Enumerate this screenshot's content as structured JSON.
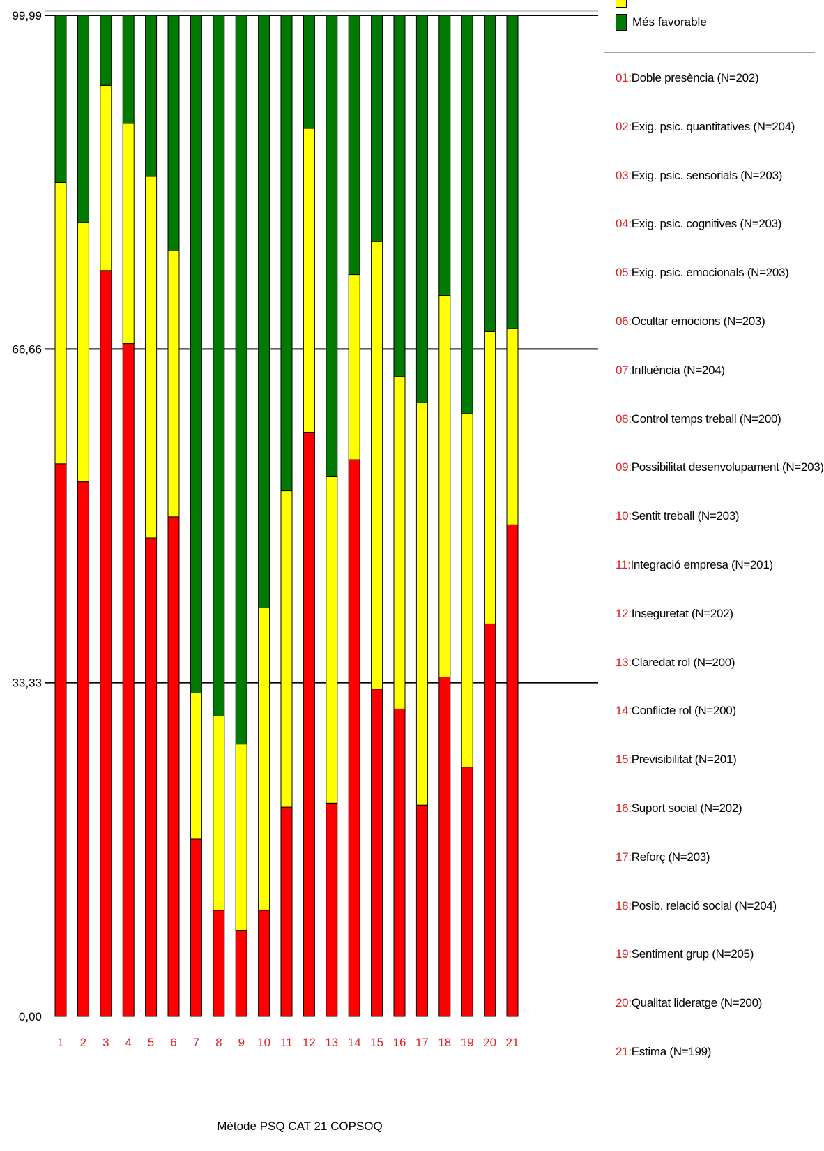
{
  "chart_data": {
    "type": "bar",
    "stacked": true,
    "categories": [
      "1",
      "2",
      "3",
      "4",
      "5",
      "6",
      "7",
      "8",
      "9",
      "10",
      "11",
      "12",
      "13",
      "14",
      "15",
      "16",
      "17",
      "18",
      "19",
      "20",
      "21"
    ],
    "series": [
      {
        "name": "",
        "color": "#ff0000",
        "values": [
          55.2,
          53.4,
          74.5,
          67.2,
          47.8,
          49.9,
          17.7,
          10.6,
          8.6,
          10.6,
          20.9,
          58.3,
          21.3,
          55.6,
          32.7,
          30.7,
          21.1,
          33.9,
          24.9,
          39.2,
          49.1
        ]
      },
      {
        "name": "",
        "color": "#ffff00",
        "values": [
          28.1,
          25.9,
          18.5,
          22.0,
          36.1,
          26.6,
          14.6,
          19.4,
          18.6,
          30.2,
          31.6,
          30.4,
          32.6,
          18.5,
          44.7,
          33.2,
          40.2,
          38.1,
          35.3,
          29.2,
          19.6
        ]
      },
      {
        "name": "Més favorable",
        "color": "#007a00",
        "values": [
          16.69,
          20.69,
          6.99,
          10.79,
          16.09,
          23.49,
          67.69,
          69.99,
          72.79,
          59.19,
          47.49,
          11.29,
          46.09,
          25.89,
          22.59,
          36.09,
          38.69,
          27.99,
          39.79,
          31.59,
          31.29
        ]
      }
    ],
    "yticks": [
      "0,00",
      "33,33",
      "66,66",
      "99,99"
    ],
    "ylim": [
      0,
      99.99
    ],
    "xlabel": "Mètode PSQ CAT 21 COPSOQ",
    "ylabel": "",
    "grid": true,
    "legend": "right"
  },
  "legend": {
    "swatches": [
      {
        "color": "#ffff00",
        "label": ""
      },
      {
        "color": "#007a00",
        "label": "Més favorable"
      }
    ],
    "items": [
      {
        "code": "01",
        "label": "Doble presència (N=202)"
      },
      {
        "code": "02",
        "label": "Exig. psic. quantitatives (N=204)"
      },
      {
        "code": "03",
        "label": "Exig. psic. sensorials (N=203)"
      },
      {
        "code": "04",
        "label": "Exig. psic. cognitives (N=203)"
      },
      {
        "code": "05",
        "label": "Exig. psic. emocionals (N=203)"
      },
      {
        "code": "06",
        "label": "Ocultar emocions (N=203)"
      },
      {
        "code": "07",
        "label": "Influència (N=204)"
      },
      {
        "code": "08",
        "label": "Control temps treball (N=200)"
      },
      {
        "code": "09",
        "label": "Possibilitat desenvolupament (N=203)"
      },
      {
        "code": "10",
        "label": "Sentit treball (N=203)"
      },
      {
        "code": "11",
        "label": "Integració empresa (N=201)"
      },
      {
        "code": "12",
        "label": "Inseguretat (N=202)"
      },
      {
        "code": "13",
        "label": "Claredat rol (N=200)"
      },
      {
        "code": "14",
        "label": "Conflicte rol (N=200)"
      },
      {
        "code": "15",
        "label": "Previsibilitat (N=201)"
      },
      {
        "code": "16",
        "label": "Suport social (N=202)"
      },
      {
        "code": "17",
        "label": "Reforç (N=203)"
      },
      {
        "code": "18",
        "label": "Posib. relació social (N=204)"
      },
      {
        "code": "19",
        "label": "Sentiment grup (N=205)"
      },
      {
        "code": "20",
        "label": "Qualitat lideratge (N=200)"
      },
      {
        "code": "21",
        "label": "Estima (N=199)"
      }
    ]
  }
}
